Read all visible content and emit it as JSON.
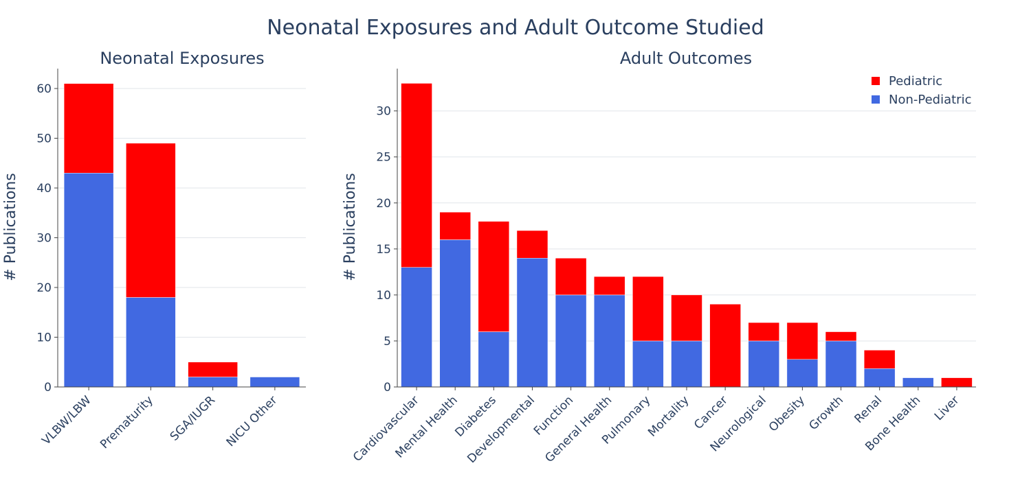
{
  "title": "Neonatal Exposures and Adult Outcome Studied",
  "colors": {
    "pediatric": "#ff0000",
    "non_pediatric": "#4169e1"
  },
  "legend": {
    "placement": "top-right",
    "items": [
      {
        "name": "Pediatric",
        "color": "#ff0000"
      },
      {
        "name": "Non-Pediatric",
        "color": "#4169e1"
      }
    ]
  },
  "chart_data": [
    {
      "type": "bar",
      "stacked": true,
      "title": "Neonatal Exposures",
      "xlabel": "",
      "ylabel": "# Publications",
      "ylim": [
        0,
        64
      ],
      "yticks": [
        0,
        10,
        20,
        30,
        40,
        50,
        60
      ],
      "grid": true,
      "categories": [
        "VLBW/LBW",
        "Prematurity",
        "SGA/IUGR",
        "NICU Other"
      ],
      "series": [
        {
          "name": "Non-Pediatric",
          "values": [
            43,
            18,
            2,
            2
          ]
        },
        {
          "name": "Pediatric",
          "values": [
            18,
            31,
            3,
            0
          ]
        }
      ]
    },
    {
      "type": "bar",
      "stacked": true,
      "title": "Adult Outcomes",
      "xlabel": "",
      "ylabel": "# Publications",
      "ylim": [
        0,
        34.6
      ],
      "yticks": [
        0,
        5,
        10,
        15,
        20,
        25,
        30
      ],
      "grid": true,
      "categories": [
        "Cardiovascular",
        "Mental Health",
        "Diabetes",
        "Developmental",
        "Function",
        "General Health",
        "Pulmonary",
        "Mortality",
        "Cancer",
        "Neurological",
        "Obesity",
        "Growth",
        "Renal",
        "Bone Health",
        "Liver"
      ],
      "series": [
        {
          "name": "Non-Pediatric",
          "values": [
            13,
            16,
            6,
            14,
            10,
            10,
            5,
            5,
            0,
            5,
            3,
            5,
            2,
            1,
            0
          ]
        },
        {
          "name": "Pediatric",
          "values": [
            20,
            3,
            12,
            3,
            4,
            2,
            7,
            5,
            9,
            2,
            4,
            1,
            2,
            0,
            1
          ]
        }
      ]
    }
  ]
}
